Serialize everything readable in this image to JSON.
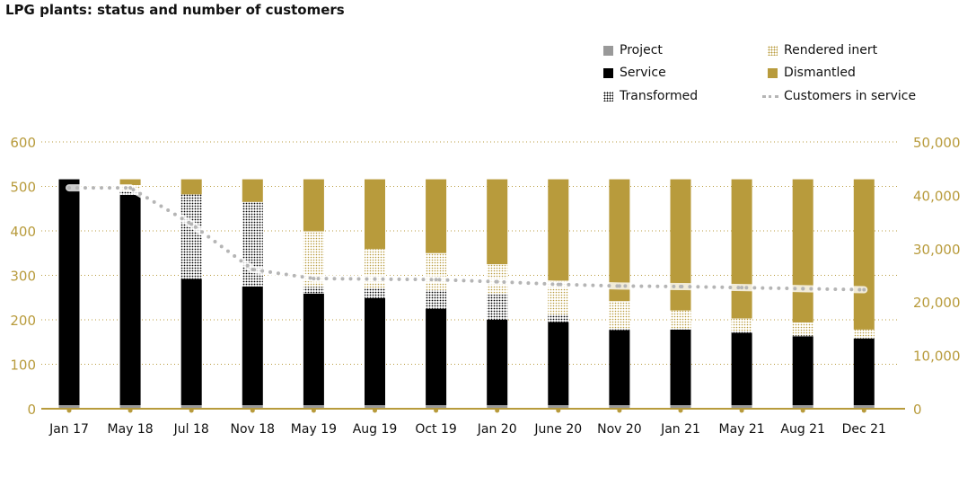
{
  "title": "LPG plants: status and number of customers",
  "chart_data": {
    "type": "bar",
    "title": "LPG plants: status and number of customers",
    "categories": [
      "Jan 17",
      "May 18",
      "Jul 18",
      "Nov 18",
      "May 19",
      "Aug 19",
      "Oct 19",
      "Jan 20",
      "June 20",
      "Nov 20",
      "Jan 21",
      "May 21",
      "Aug 21",
      "Dec 21"
    ],
    "stacked": true,
    "series": [
      {
        "name": "Project",
        "color": "#999999",
        "values": [
          8,
          8,
          8,
          8,
          8,
          8,
          8,
          8,
          8,
          8,
          8,
          8,
          8,
          8
        ]
      },
      {
        "name": "Service",
        "color": "#000000",
        "values": [
          508,
          473,
          284,
          267,
          251,
          241,
          217,
          192,
          187,
          169,
          170,
          163,
          155,
          150
        ]
      },
      {
        "name": "Transformed",
        "color": "#000000",
        "pattern": "black-dots",
        "values": [
          0,
          8,
          190,
          190,
          15,
          22,
          42,
          57,
          17,
          4,
          2,
          2,
          2,
          1
        ]
      },
      {
        "name": "Rendered inert",
        "color": "#b89b3c",
        "pattern": "gold-dots",
        "values": [
          0,
          14,
          0,
          0,
          125,
          88,
          83,
          68,
          76,
          61,
          41,
          30,
          29,
          19
        ]
      },
      {
        "name": "Dismantled",
        "color": "#b89b3c",
        "values": [
          0,
          13,
          34,
          51,
          117,
          157,
          166,
          191,
          228,
          274,
          295,
          313,
          322,
          338
        ]
      }
    ],
    "line_series": {
      "name": "Customers in service",
      "color": "#b5b5b5",
      "axis": "right",
      "values": [
        41400,
        41400,
        34600,
        26100,
        24400,
        24300,
        24200,
        23800,
        23300,
        23000,
        22900,
        22700,
        22500,
        22300
      ]
    },
    "left_axis": {
      "range": [
        0,
        600
      ],
      "ticks": [
        "0",
        "100",
        "200",
        "300",
        "400",
        "500",
        "600"
      ]
    },
    "right_axis": {
      "range": [
        0,
        50000
      ],
      "ticks": [
        "0",
        "10,000",
        "20,000",
        "30,000",
        "40,000",
        "50,000"
      ]
    },
    "grid": true,
    "legend_placement": "top-right",
    "axis_color": "#b89b3c"
  },
  "legend": [
    "Project",
    "Service",
    "Transformed",
    "Rendered inert",
    "Dismantled",
    "Customers in service"
  ]
}
